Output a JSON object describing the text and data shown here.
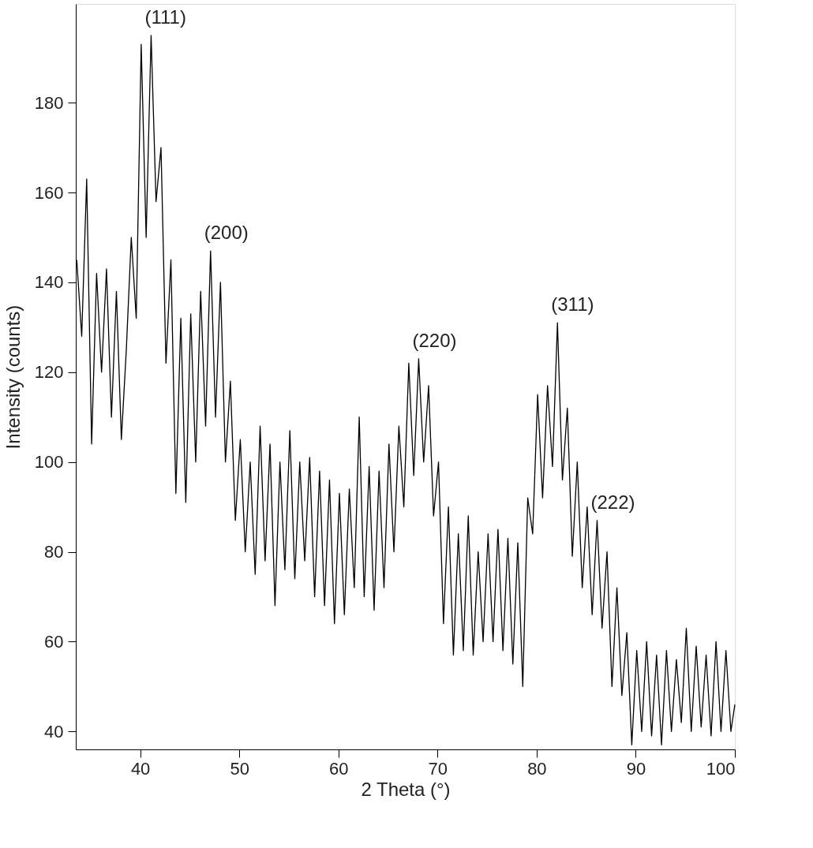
{
  "chart_data": {
    "type": "line",
    "xlabel": "2 Theta (°)",
    "ylabel": "Intensity (counts)",
    "xlim": [
      33.5,
      100
    ],
    "ylim": [
      36,
      202
    ],
    "xticks": [
      40,
      50,
      60,
      70,
      80,
      90,
      100
    ],
    "yticks": [
      40,
      60,
      80,
      100,
      120,
      140,
      160,
      180
    ],
    "grid": false,
    "marker": "none",
    "line_style": "solid",
    "x": [
      33.6,
      34.1,
      34.6,
      35.1,
      35.6,
      36.1,
      36.6,
      37.1,
      37.6,
      38.1,
      38.6,
      39.1,
      39.6,
      40.1,
      40.6,
      41.1,
      41.6,
      42.1,
      42.6,
      43.1,
      43.6,
      44.1,
      44.6,
      45.1,
      45.6,
      46.1,
      46.6,
      47.1,
      47.6,
      48.1,
      48.6,
      49.1,
      49.6,
      50.1,
      50.6,
      51.1,
      51.6,
      52.1,
      52.6,
      53.1,
      53.6,
      54.1,
      54.6,
      55.1,
      55.6,
      56.1,
      56.6,
      57.1,
      57.6,
      58.1,
      58.6,
      59.1,
      59.6,
      60.1,
      60.6,
      61.1,
      61.6,
      62.1,
      62.6,
      63.1,
      63.6,
      64.1,
      64.6,
      65.1,
      65.6,
      66.1,
      66.6,
      67.1,
      67.6,
      68.1,
      68.6,
      69.1,
      69.6,
      70.1,
      70.6,
      71.1,
      71.6,
      72.1,
      72.6,
      73.1,
      73.6,
      74.1,
      74.6,
      75.1,
      75.6,
      76.1,
      76.6,
      77.1,
      77.6,
      78.1,
      78.6,
      79.1,
      79.6,
      80.1,
      80.6,
      81.1,
      81.6,
      82.1,
      82.6,
      83.1,
      83.6,
      84.1,
      84.6,
      85.1,
      85.6,
      86.1,
      86.6,
      87.1,
      87.6,
      88.1,
      88.6,
      89.1,
      89.6,
      90.1,
      90.6,
      91.1,
      91.6,
      92.1,
      92.6,
      93.1,
      93.6,
      94.1,
      94.6,
      95.1,
      95.6,
      96.1,
      96.6,
      97.1,
      97.6,
      98.1,
      98.6,
      99.1,
      99.6,
      100
    ],
    "series": [
      {
        "color": "#000000",
        "values": [
          145,
          128,
          163,
          104,
          142,
          120,
          143,
          110,
          138,
          105,
          125,
          150,
          132,
          193,
          150,
          195,
          158,
          170,
          122,
          145,
          93,
          132,
          91,
          133,
          100,
          138,
          108,
          147,
          110,
          140,
          100,
          118,
          87,
          105,
          80,
          100,
          75,
          108,
          78,
          104,
          68,
          100,
          76,
          107,
          74,
          100,
          78,
          101,
          70,
          98,
          68,
          96,
          64,
          93,
          66,
          94,
          72,
          110,
          70,
          99,
          67,
          98,
          72,
          104,
          80,
          108,
          90,
          122,
          97,
          123,
          100,
          117,
          88,
          100,
          64,
          90,
          57,
          84,
          58,
          88,
          57,
          80,
          60,
          84,
          60,
          85,
          58,
          83,
          55,
          82,
          50,
          92,
          84,
          115,
          92,
          117,
          99,
          131,
          96,
          112,
          79,
          100,
          72,
          90,
          66,
          87,
          63,
          80,
          50,
          72,
          48,
          62,
          37,
          58,
          40,
          60,
          39,
          57,
          37,
          58,
          40,
          56,
          42,
          63,
          40,
          59,
          41,
          57,
          39,
          60,
          40,
          58,
          40,
          46
        ]
      }
    ],
    "annotations": [
      {
        "text": "(111)",
        "x": 41.1,
        "y": 195
      },
      {
        "text": "(200)",
        "x": 47.1,
        "y": 147
      },
      {
        "text": "(220)",
        "x": 68.1,
        "y": 123
      },
      {
        "text": "(311)",
        "x": 82.1,
        "y": 131
      },
      {
        "text": "(222)",
        "x": 86.1,
        "y": 87
      }
    ]
  }
}
